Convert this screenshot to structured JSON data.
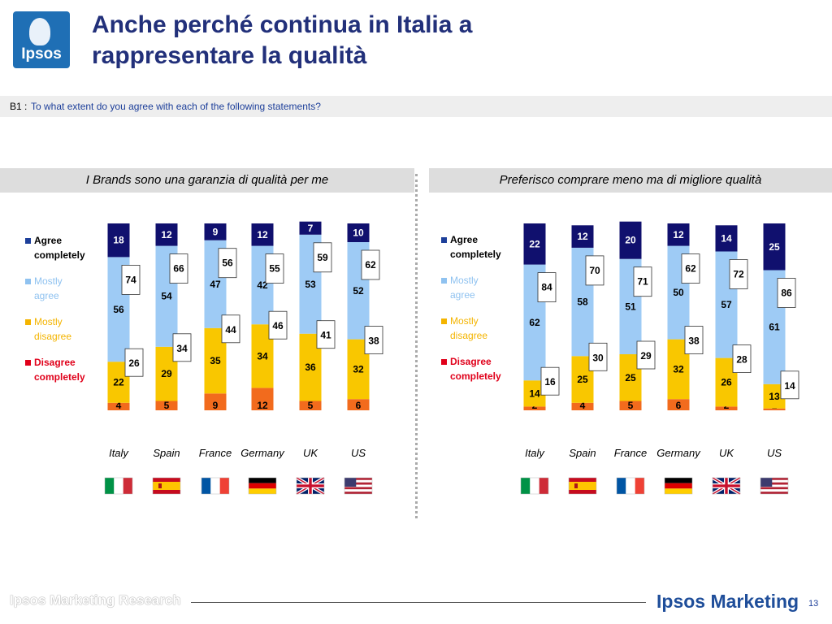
{
  "header": {
    "logo_text": "Ipsos",
    "title_line1": "Anche perché continua in Italia a",
    "title_line2": "rappresentare la qualità"
  },
  "question": {
    "code": "B1 :",
    "text": "To what extent do you agree with each of the following statements?"
  },
  "colors": {
    "agree_completely": "#10106e",
    "mostly_agree": "#9ecbf5",
    "mostly_disagree": "#f9c700",
    "disagree_completely": "#f26b1d",
    "legend_red": "#e0001a",
    "legend_blue": "#1d3f9a"
  },
  "chart_data": [
    {
      "type": "bar",
      "stacked": true,
      "title": "I Brands sono una garanzia di qualità per me",
      "categories": [
        "Italy",
        "Spain",
        "France",
        "Germany",
        "UK",
        "US"
      ],
      "series": [
        {
          "name": "Agree completely",
          "values": [
            18,
            12,
            9,
            12,
            7,
            10
          ]
        },
        {
          "name": "Mostly agree",
          "values": [
            56,
            54,
            47,
            42,
            53,
            52
          ]
        },
        {
          "name": "Mostly disagree",
          "values": [
            22,
            29,
            35,
            34,
            36,
            32
          ]
        },
        {
          "name": "Disagree completely",
          "values": [
            4,
            5,
            9,
            12,
            5,
            6
          ]
        }
      ],
      "top_totals": [
        74,
        66,
        56,
        55,
        59,
        62
      ],
      "bottom_totals": [
        26,
        34,
        44,
        46,
        41,
        38
      ],
      "legend": [
        "Agree completely",
        "Mostly agree",
        "Mostly disagree",
        "Disagree completely"
      ]
    },
    {
      "type": "bar",
      "stacked": true,
      "title": "Preferisco comprare meno ma di migliore qualità",
      "categories": [
        "Italy",
        "Spain",
        "France",
        "Germany",
        "UK",
        "US"
      ],
      "series": [
        {
          "name": "Agree completely",
          "values": [
            22,
            12,
            20,
            12,
            14,
            25
          ]
        },
        {
          "name": "Mostly agree",
          "values": [
            62,
            58,
            51,
            50,
            57,
            61
          ]
        },
        {
          "name": "Mostly disagree",
          "values": [
            14,
            25,
            25,
            32,
            26,
            13
          ]
        },
        {
          "name": "Disagree completely",
          "values": [
            2,
            4,
            5,
            6,
            2,
            1
          ]
        }
      ],
      "top_totals": [
        84,
        70,
        71,
        62,
        72,
        86
      ],
      "bottom_totals": [
        16,
        30,
        29,
        38,
        28,
        14
      ],
      "legend": [
        "Agree completely",
        "Mostly agree",
        "Mostly disagree",
        "Disagree completely"
      ]
    }
  ],
  "legend_labels": [
    [
      "Agree",
      "completely"
    ],
    [
      "Mostly",
      "agree"
    ],
    [
      "Mostly",
      "disagree"
    ],
    [
      "Disagree",
      "completely"
    ]
  ],
  "flags": [
    "italy-flag",
    "spain-flag",
    "france-flag",
    "germany-flag",
    "uk-flag",
    "us-flag"
  ],
  "footer": {
    "left": "Ipsos Marketing Research",
    "brand": "Ipsos Marketing",
    "page": "13"
  }
}
